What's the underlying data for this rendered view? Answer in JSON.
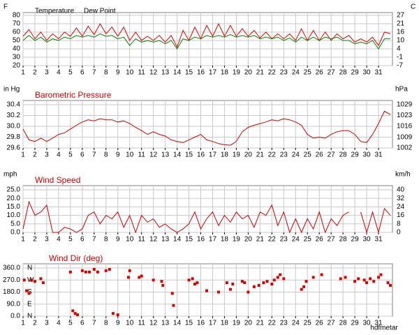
{
  "chart_data": [
    {
      "type": "line",
      "y_label": "F",
      "y2_label": "C",
      "x": [
        1,
        1.5,
        2,
        2.5,
        3,
        3.5,
        4,
        4.5,
        5,
        5.5,
        6,
        6.5,
        7,
        7.5,
        8,
        8.5,
        9,
        9.5,
        10,
        10.5,
        11,
        11.5,
        12,
        12.5,
        13,
        13.5,
        14,
        14.5,
        15,
        15.5,
        16,
        16.5,
        17,
        17.5,
        18,
        18.5,
        19,
        19.5,
        20,
        20.5,
        21,
        21.5,
        22,
        22.5,
        23,
        23.5,
        24,
        24.5,
        25,
        25.5,
        26,
        26.5,
        27,
        27.5,
        28,
        28.5,
        29,
        29.5,
        30,
        30.5,
        31,
        31.5,
        32
      ],
      "series": [
        {
          "name": "Temperature",
          "color": "#e00000",
          "values": [
            55,
            63,
            52,
            60,
            50,
            58,
            52,
            60,
            55,
            65,
            55,
            67,
            57,
            70,
            58,
            66,
            55,
            66,
            50,
            60,
            50,
            55,
            50,
            56,
            48,
            56,
            42,
            62,
            50,
            66,
            52,
            68,
            55,
            70,
            55,
            68,
            55,
            64,
            55,
            62,
            53,
            60,
            52,
            58,
            52,
            58,
            50,
            64,
            50,
            62,
            50,
            60,
            50,
            58,
            52,
            56,
            48,
            52,
            48,
            54,
            44,
            60,
            58
          ]
        },
        {
          "name": "Dew Point",
          "color": "#008000",
          "values": [
            50,
            56,
            50,
            54,
            48,
            52,
            50,
            54,
            52,
            56,
            54,
            56,
            54,
            58,
            55,
            56,
            52,
            54,
            44,
            52,
            48,
            50,
            48,
            50,
            46,
            50,
            40,
            52,
            50,
            54,
            52,
            56,
            54,
            56,
            54,
            57,
            54,
            56,
            54,
            56,
            52,
            54,
            52,
            54,
            50,
            53,
            48,
            54,
            50,
            54,
            50,
            54,
            52,
            54,
            50,
            50,
            46,
            48,
            46,
            50,
            40,
            52,
            52
          ]
        }
      ],
      "xlim": [
        1,
        32
      ],
      "xticks": [
        1,
        2,
        3,
        4,
        5,
        6,
        7,
        8,
        9,
        10,
        11,
        12,
        13,
        14,
        15,
        16,
        17,
        18,
        19,
        20,
        21,
        22,
        23,
        24,
        25,
        26,
        27,
        28,
        29,
        30,
        31
      ],
      "ylim": [
        20,
        80
      ],
      "yticks": [
        20,
        30,
        40,
        50,
        60,
        70,
        80
      ],
      "y2lim": [
        -6.67,
        26.67
      ],
      "y2ticks": [
        {
          "value": -6.67,
          "label": "-7"
        },
        {
          "value": -1.11,
          "label": "-1"
        },
        {
          "value": 4.44,
          "label": "4"
        },
        10,
        {
          "value": 15.56,
          "label": "16"
        },
        {
          "value": 21.11,
          "label": "21"
        },
        {
          "value": 26.67,
          "label": "27"
        }
      ],
      "grid": true
    },
    {
      "type": "line",
      "title": "Barometric Pressure",
      "y_label": "in Hg",
      "y2_label": "hPa",
      "x": [
        1,
        1.5,
        2,
        2.5,
        3,
        3.5,
        4,
        4.5,
        5,
        5.5,
        6,
        6.5,
        7,
        7.5,
        8,
        8.5,
        9,
        9.5,
        10,
        10.5,
        11,
        11.5,
        12,
        12.5,
        13,
        13.5,
        14,
        14.5,
        15,
        15.5,
        16,
        16.5,
        17,
        17.5,
        18,
        18.5,
        19,
        19.5,
        20,
        20.5,
        21,
        21.5,
        22,
        22.5,
        23,
        23.5,
        24,
        24.5,
        25,
        25.5,
        26,
        26.5,
        27,
        27.5,
        28,
        28.5,
        29,
        29.5,
        30,
        30.5,
        31,
        31.5,
        32
      ],
      "series": [
        {
          "color": "#d00000",
          "values": [
            29.95,
            29.75,
            29.72,
            29.78,
            29.72,
            29.78,
            29.85,
            29.88,
            29.95,
            30.02,
            30.08,
            30.12,
            30.1,
            30.14,
            30.12,
            30.12,
            30.08,
            30.1,
            30.05,
            29.98,
            29.92,
            29.85,
            29.9,
            29.85,
            29.82,
            29.75,
            29.72,
            29.7,
            29.75,
            29.8,
            29.85,
            29.75,
            29.72,
            29.68,
            29.66,
            29.65,
            29.72,
            29.9,
            29.98,
            30.02,
            30.05,
            30.08,
            30.12,
            30.1,
            30.14,
            30.12,
            30.08,
            30.02,
            29.85,
            29.78,
            29.8,
            29.78,
            29.85,
            29.9,
            29.92,
            29.92,
            29.85,
            29.72,
            29.7,
            29.85,
            30.05,
            30.28,
            30.22
          ]
        }
      ],
      "xlim": [
        1,
        32
      ],
      "xticks": [
        1,
        2,
        3,
        4,
        5,
        6,
        7,
        8,
        9,
        10,
        11,
        12,
        13,
        14,
        15,
        16,
        17,
        18,
        19,
        20,
        21,
        22,
        23,
        24,
        25,
        26,
        27,
        28,
        29,
        30,
        31
      ],
      "ylim": [
        29.6,
        30.4
      ],
      "yticks": [
        29.6,
        29.8,
        {
          "value": 30,
          "label": "30.0"
        },
        30.2,
        30.4
      ],
      "y2lim": [
        1002.4,
        1029.4
      ],
      "y2ticks": [
        {
          "value": 1002.4,
          "label": "1002"
        },
        {
          "value": 1009.1,
          "label": "1009"
        },
        {
          "value": 1015.9,
          "label": "1016"
        },
        {
          "value": 1022.7,
          "label": "1023"
        },
        {
          "value": 1029.4,
          "label": "1029"
        }
      ],
      "grid": true
    },
    {
      "type": "line",
      "title": "Wind Speed",
      "y_label": "mph",
      "y2_label": "km/h",
      "x": [
        1,
        1.5,
        2,
        2.5,
        3,
        3.5,
        4,
        4.5,
        5,
        5.5,
        6,
        6.5,
        7,
        7.5,
        8,
        8.5,
        9,
        9.5,
        10,
        10.5,
        11,
        11.5,
        12,
        12.5,
        13,
        13.5,
        14,
        14.5,
        15,
        15.5,
        16,
        16.5,
        17,
        17.5,
        18,
        18.5,
        19,
        19.5,
        20,
        20.5,
        21,
        21.5,
        22,
        22.5,
        23,
        23.5,
        24,
        24.5,
        25,
        25.5,
        26,
        26.5,
        27,
        27.5,
        28,
        28.5,
        29,
        29.5,
        30,
        30.5,
        31,
        31.5,
        32
      ],
      "series": [
        {
          "color": "#d00000",
          "values": [
            2,
            18,
            10,
            12,
            16,
            0,
            0,
            3,
            2,
            0,
            2,
            10,
            12,
            5,
            10,
            8,
            12,
            3,
            10,
            0,
            10,
            6,
            8,
            3,
            5,
            2,
            0,
            2,
            5,
            12,
            2,
            8,
            12,
            4,
            10,
            6,
            12,
            8,
            10,
            3,
            12,
            10,
            16,
            4,
            12,
            0,
            8,
            0,
            8,
            2,
            12,
            0,
            8,
            4,
            10,
            12,
            null,
            12,
            0,
            12,
            0,
            14,
            10
          ]
        }
      ],
      "xlim": [
        1,
        32
      ],
      "xticks": [
        1,
        2,
        3,
        4,
        5,
        6,
        7,
        8,
        9,
        10,
        11,
        12,
        13,
        14,
        15,
        16,
        17,
        18,
        19,
        20,
        21,
        22,
        23,
        24,
        25,
        26,
        27,
        28,
        29,
        30,
        31
      ],
      "ylim": [
        0,
        25
      ],
      "yticks": [
        {
          "value": 0,
          "label": "0.0"
        },
        {
          "value": 5,
          "label": "5.0"
        },
        {
          "value": 10,
          "label": "10.0"
        },
        {
          "value": 15,
          "label": "15.0"
        },
        {
          "value": 20,
          "label": "20.0"
        },
        {
          "value": 25,
          "label": "25.0"
        }
      ],
      "y2lim": [
        0,
        40.2
      ],
      "y2ticks": [
        0,
        {
          "value": 8.05,
          "label": "8"
        },
        {
          "value": 16.1,
          "label": "16"
        },
        {
          "value": 24.1,
          "label": "24"
        },
        {
          "value": 32.2,
          "label": "32"
        },
        {
          "value": 40.2,
          "label": "40"
        }
      ],
      "grid": true
    },
    {
      "type": "scatter",
      "title": "Wind Dir (deg)",
      "annotation": "hdfmetar",
      "color": "#e00000",
      "x": [
        1.1,
        1.3,
        1.5,
        1.7,
        2,
        2.5,
        2.7,
        5,
        5.2,
        5.4,
        5.6,
        6,
        6.3,
        6.6,
        7,
        7.3,
        8,
        8.3,
        8.6,
        9,
        9.9,
        10,
        10.8,
        11,
        12,
        12.7,
        12.8,
        13.6,
        13.7,
        15,
        15.3,
        15.5,
        15.7,
        16.5,
        17.5,
        18.2,
        18.5,
        18.7,
        19.5,
        19.7,
        20,
        20.5,
        20.9,
        21.3,
        21.6,
        22,
        22.2,
        22.5,
        22.7,
        23,
        24.5,
        24.7,
        24.9,
        25.5,
        26.2,
        27.8,
        28.2,
        29,
        29.3,
        29.8,
        30,
        30.3,
        30.6,
        31,
        31.2,
        31.8,
        32
      ],
      "values": [
        270,
        190,
        170,
        270,
        260,
        280,
        250,
        330,
        40,
        20,
        10,
        340,
        330,
        330,
        350,
        330,
        340,
        350,
        20,
        10,
        290,
        340,
        290,
        300,
        270,
        260,
        230,
        170,
        80,
        270,
        280,
        240,
        250,
        190,
        180,
        250,
        200,
        240,
        260,
        250,
        180,
        220,
        230,
        250,
        260,
        240,
        270,
        290,
        310,
        280,
        200,
        220,
        260,
        290,
        310,
        280,
        290,
        260,
        280,
        270,
        250,
        280,
        260,
        290,
        310,
        250,
        230
      ],
      "xlim": [
        1,
        32
      ],
      "xticks": [
        1,
        2,
        3,
        4,
        5,
        6,
        7,
        8,
        9,
        10,
        11,
        12,
        13,
        14,
        15,
        16,
        17,
        18,
        19,
        20,
        21,
        22,
        23,
        24,
        25,
        26,
        27,
        28,
        29,
        30,
        31
      ],
      "ylim": [
        0,
        360
      ],
      "yticks": [
        {
          "value": 0,
          "label": "0.0"
        },
        {
          "value": 90,
          "label": "90.0"
        },
        {
          "value": 180,
          "label": "180.0"
        },
        {
          "value": 270,
          "label": "270.0"
        },
        {
          "value": 360,
          "label": "360.0"
        }
      ],
      "y2ticks": [
        {
          "value": 0,
          "label": "N"
        },
        {
          "value": 90,
          "label": "E"
        },
        {
          "value": 180,
          "label": "S"
        },
        {
          "value": 270,
          "label": "W"
        },
        {
          "value": 360,
          "label": "N"
        }
      ],
      "grid": true
    }
  ]
}
